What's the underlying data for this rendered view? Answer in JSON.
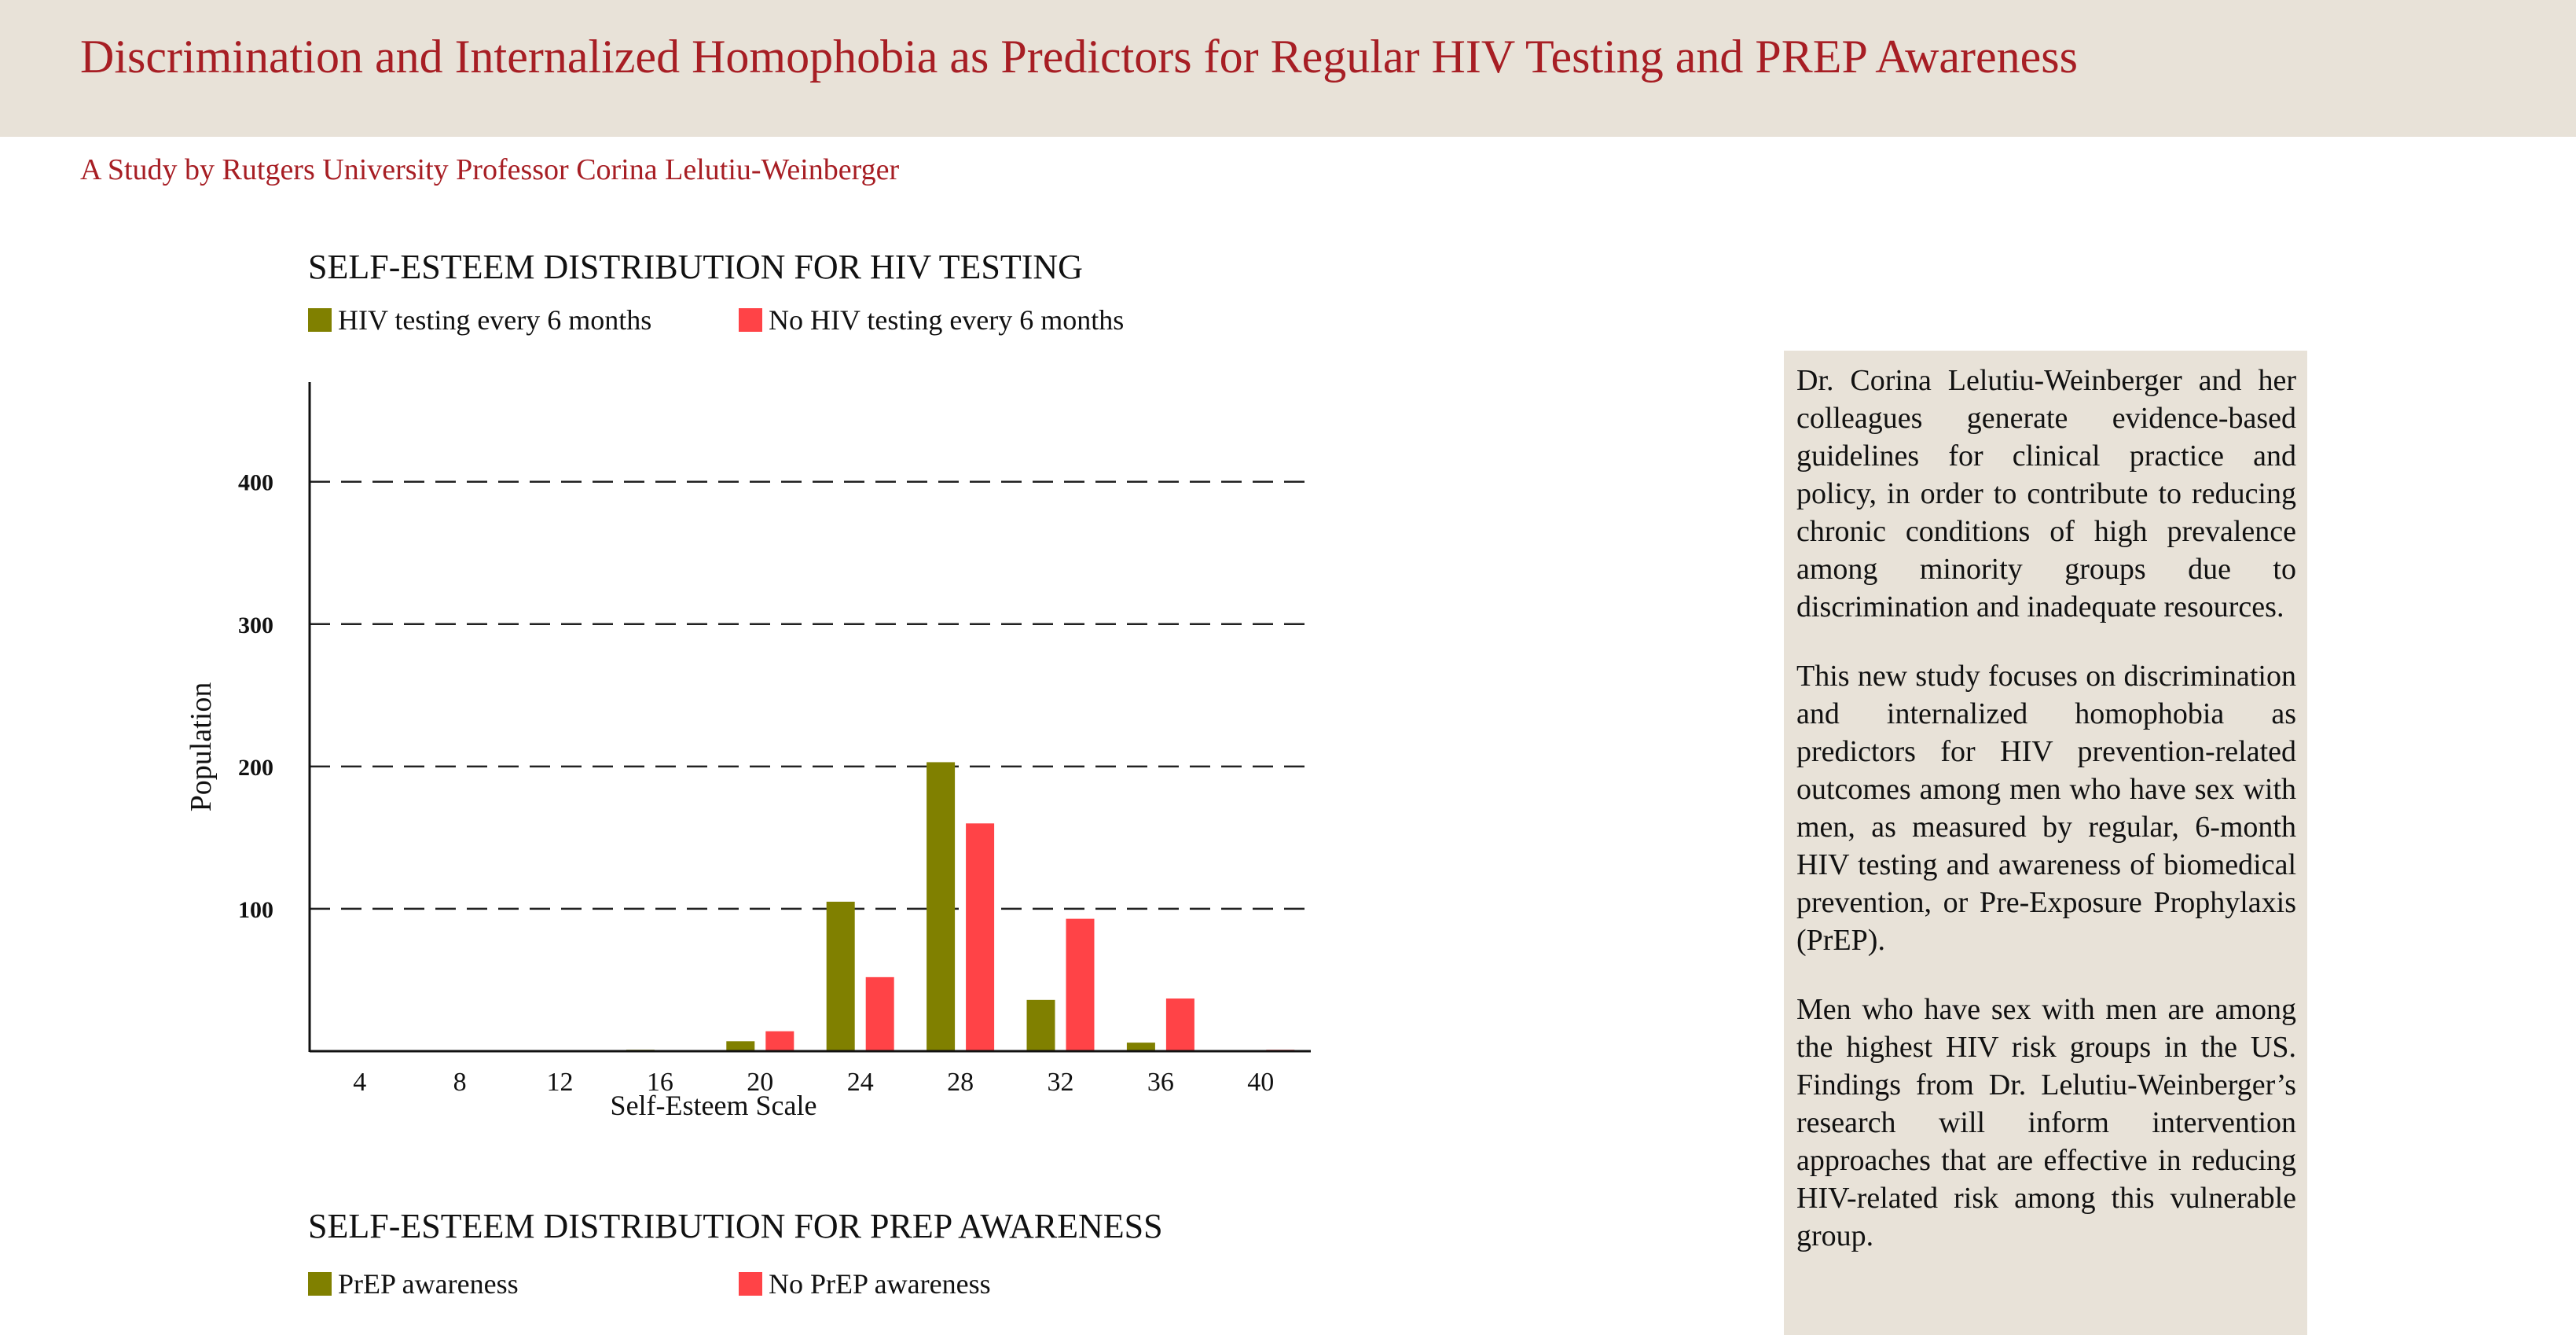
{
  "header": {
    "title": "Discrimination and Internalized Homophobia as Predictors for Regular HIV Testing and PREP Awareness",
    "subtitle": "A Study by Rutgers University Professor Corina Lelutiu-Weinberger"
  },
  "colors": {
    "accent": "#a71e24",
    "panel_bg": "#e8e2d8",
    "series_a": "#808000",
    "series_b": "#ff4347"
  },
  "sidebar": {
    "paragraphs": [
      "Dr. Corina Lelutiu-Weinberger and her colleagues generate evidence-based guidelines for clinical practice and policy, in order to contribute to reducing chronic conditions of high prevalence among minority groups due to discrimination and inadequate resources.",
      "This new study focuses on discrimination and internalized homophobia as predictors for HIV prevention-related outcomes among men who have sex with men, as measured by regular, 6-month HIV testing and awareness of biomedical prevention, or Pre-Exposure Prophylaxis (PrEP).",
      "Men who have sex with men are among the highest HIV risk groups in the US. Findings from Dr. Lelutiu-Weinberger’s research will inform intervention approaches that are effective in reducing HIV-related risk among this vulnerable group."
    ]
  },
  "chart_data": [
    {
      "type": "bar",
      "title": "SELF-ESTEEM DISTRIBUTION FOR HIV TESTING",
      "xlabel": "Self-Esteem Scale",
      "ylabel": "Population",
      "x_ticks": [
        "4",
        "8",
        "12",
        "16",
        "20",
        "24",
        "28",
        "32",
        "36",
        "40"
      ],
      "y_ticks": [
        100,
        200,
        300,
        400
      ],
      "ylim": [
        0,
        470
      ],
      "xlim": [
        2,
        42
      ],
      "grid": "horizontal dashed",
      "legend_position": "top",
      "series": [
        {
          "name": "HIV testing every 6 months",
          "color": "#808000",
          "points": [
            [
              16,
              1
            ],
            [
              20,
              7
            ],
            [
              24,
              105
            ],
            [
              28,
              203
            ],
            [
              32,
              36
            ],
            [
              36,
              6
            ]
          ]
        },
        {
          "name": "No HIV testing every 6 months",
          "color": "#ff4347",
          "points": [
            [
              20,
              14
            ],
            [
              24,
              52
            ],
            [
              28,
              160
            ],
            [
              32,
              93
            ],
            [
              36,
              37
            ],
            [
              40,
              1
            ]
          ]
        }
      ]
    },
    {
      "type": "bar",
      "title": "SELF-ESTEEM DISTRIBUTION FOR PREP AWARENESS",
      "legend_position": "top",
      "series": [
        {
          "name": "PrEP awareness",
          "color": "#808000"
        },
        {
          "name": "No PrEP awareness",
          "color": "#ff4347"
        }
      ]
    }
  ]
}
